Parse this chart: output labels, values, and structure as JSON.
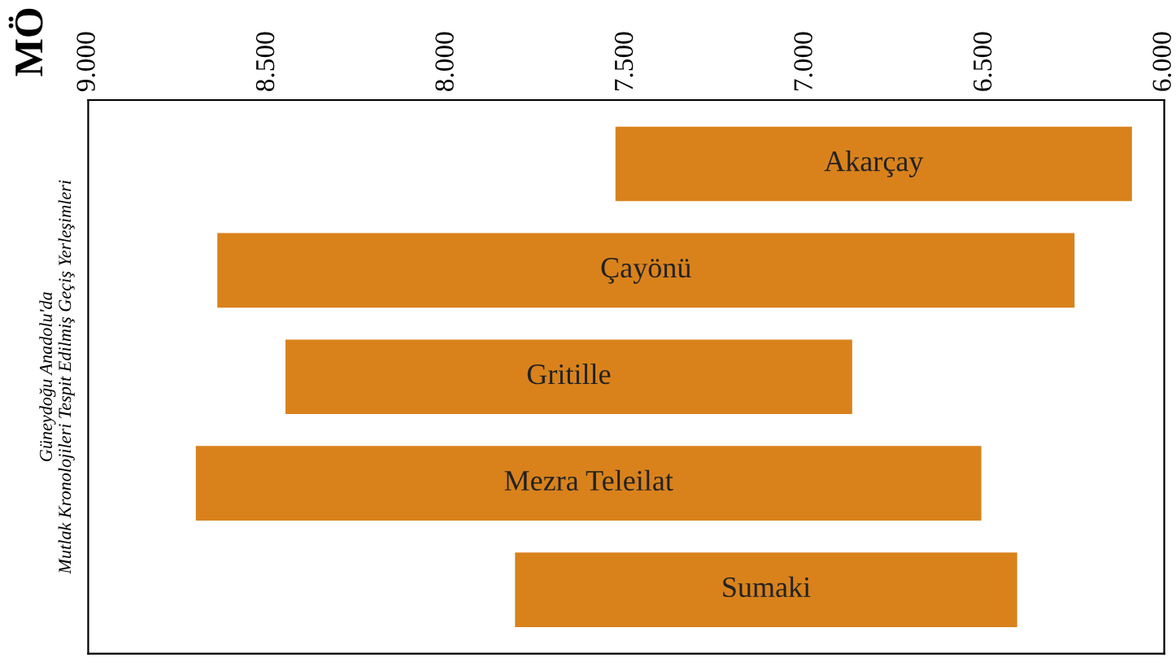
{
  "chart_data": {
    "type": "bar",
    "orientation": "horizontal",
    "title": "MÖ",
    "ylabel": "Güneydoğu Anadolu'da\nMutlak Kronolojileri Tespit Edilmiş Geçiş Yerleşimleri",
    "categories": [
      "Akarçay",
      "Çayönü",
      "Gritille",
      "Mezra Teleilat",
      "Sumaki"
    ],
    "base": [
      7530,
      8640,
      8450,
      8700,
      7810
    ],
    "values": [
      -1440,
      -2390,
      -1580,
      -2190,
      -1400
    ],
    "color": "#d9821c",
    "xlim": [
      9000,
      6000
    ],
    "xticks": [
      {
        "value": 9000,
        "label": "9.000"
      },
      {
        "value": 8500,
        "label": "8.500"
      },
      {
        "value": 8000,
        "label": "8.000"
      },
      {
        "value": 7500,
        "label": "7.500"
      },
      {
        "value": 7000,
        "label": "7.000"
      },
      {
        "value": 6500,
        "label": "6.500"
      },
      {
        "value": 6000,
        "label": "6.000"
      }
    ],
    "tick_labels": "x",
    "grid": false,
    "legend": false
  }
}
